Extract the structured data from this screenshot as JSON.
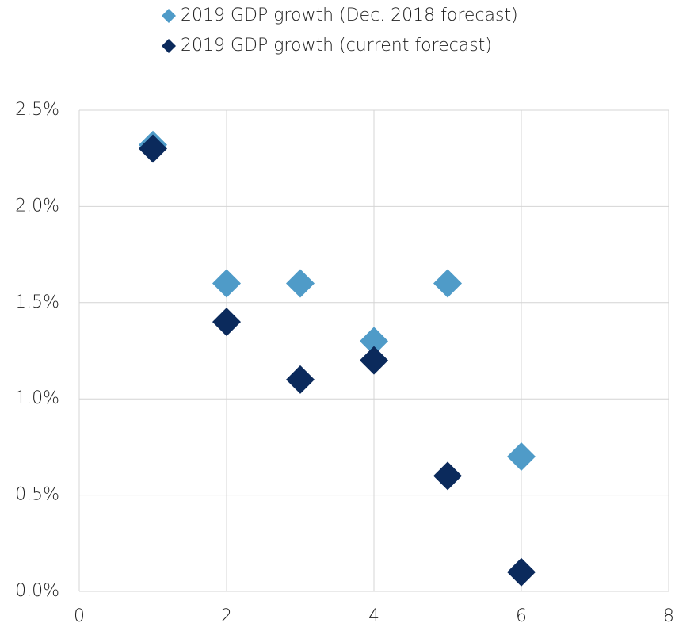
{
  "chart_data": {
    "type": "scatter",
    "series": [
      {
        "name": "2019 GDP growth (Dec. 2018 forecast)",
        "color": "#4f9bc8",
        "x": [
          1,
          2,
          3,
          4,
          5,
          6
        ],
        "values": [
          2.32,
          1.6,
          1.6,
          1.3,
          1.6,
          0.7
        ]
      },
      {
        "name": "2019 GDP growth (current forecast)",
        "color": "#0b2a5c",
        "x": [
          1,
          2,
          3,
          4,
          5,
          6
        ],
        "values": [
          2.3,
          1.4,
          1.1,
          1.2,
          0.6,
          0.1
        ]
      }
    ],
    "xlim": [
      0,
      8
    ],
    "xticks": [
      0,
      2,
      4,
      6,
      8
    ],
    "ylim": [
      0,
      2.5
    ],
    "yticks": [
      {
        "value": 0,
        "label": "0.0%"
      },
      {
        "value": 0.5,
        "label": "0.5%"
      },
      {
        "value": 1,
        "label": "1.0%"
      },
      {
        "value": 1.5,
        "label": "1.5%"
      },
      {
        "value": 2,
        "label": "2.0%"
      },
      {
        "value": 2.5,
        "label": "2.5%"
      }
    ],
    "grid": true,
    "marker": "diamond",
    "legend": "top"
  }
}
